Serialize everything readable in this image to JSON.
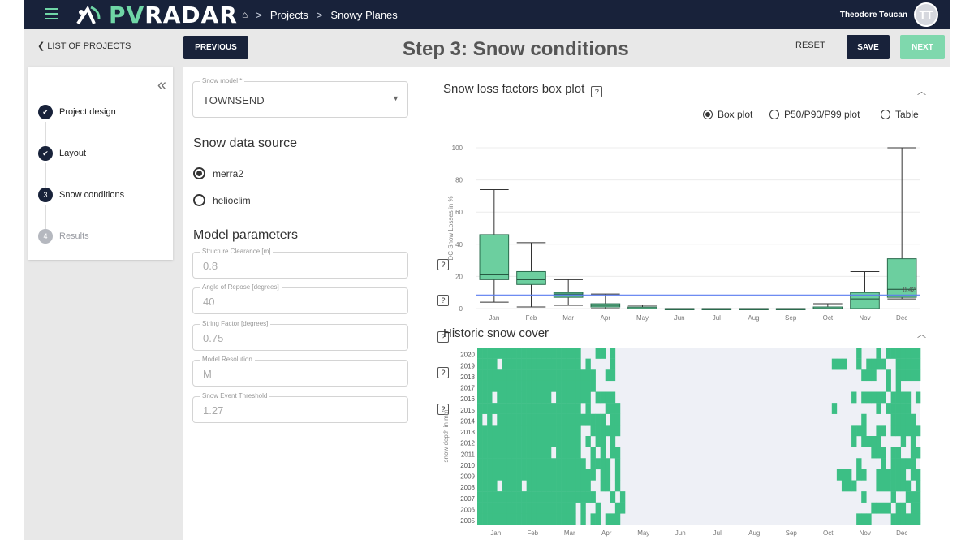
{
  "app": {
    "brand_left": "\\",
    "brand_main": "PV",
    "brand_tail": "RADAR"
  },
  "breadcrumb": {
    "home": "⌂",
    "sep": ">",
    "projects": "Projects",
    "project": "Snowy Planes"
  },
  "user": {
    "name": "Theodore Toucan",
    "initials": "TT"
  },
  "actions": {
    "back": "LIST OF PROJECTS",
    "previous": "PREVIOUS",
    "title": "Step 3: Snow conditions",
    "reset": "RESET",
    "save": "SAVE",
    "next": "NEXT"
  },
  "stepper": {
    "steps": [
      {
        "label": "Project design",
        "state": "done"
      },
      {
        "label": "Layout",
        "state": "done"
      },
      {
        "label": "Snow conditions",
        "state": "active",
        "num": "3"
      },
      {
        "label": "Results",
        "state": "pending",
        "num": "4"
      }
    ]
  },
  "form": {
    "snow_model": {
      "label": "Snow model *",
      "value": "TOWNSEND"
    },
    "source_title": "Snow data source",
    "sources": [
      {
        "label": "merra2",
        "selected": true
      },
      {
        "label": "helioclim",
        "selected": false
      }
    ],
    "params_title": "Model parameters",
    "params": [
      {
        "label": "Structure Clearance [m]",
        "value": "0.8"
      },
      {
        "label": "Angle of Repose [degrees]",
        "value": "40"
      },
      {
        "label": "String Factor [degrees]",
        "value": "0.75"
      },
      {
        "label": "Model Resolution",
        "value": "M"
      },
      {
        "label": "Snow Event Threshold",
        "value": "1.27"
      }
    ],
    "help": "?"
  },
  "box_chart": {
    "title": "Snow loss factors box plot",
    "help": "?",
    "views": [
      {
        "label": "Box plot",
        "selected": true
      },
      {
        "label": "P50/P90/P99 plot",
        "selected": false
      },
      {
        "label": "Table",
        "selected": false
      }
    ]
  },
  "heat_chart": {
    "title": "Historic snow cover"
  },
  "colors": {
    "navy": "#18223a",
    "green": "#3cbf85",
    "box_fill": "#6ccf9f",
    "mean_line": "#5a7cf0"
  },
  "chart_data": [
    {
      "type": "box",
      "ylabel": "DC Snow Losses in %",
      "ylim": [
        0,
        100
      ],
      "yticks": [
        0,
        20,
        40,
        60,
        80,
        100
      ],
      "categories": [
        "Jan",
        "Feb",
        "Mar",
        "Apr",
        "May",
        "Jun",
        "Jul",
        "Aug",
        "Sep",
        "Oct",
        "Nov",
        "Dec"
      ],
      "boxes": [
        {
          "min": 4,
          "q1": 18,
          "median": 21,
          "q3": 46,
          "max": 74
        },
        {
          "min": 1,
          "q1": 15,
          "median": 18,
          "q3": 23,
          "max": 41
        },
        {
          "min": 2,
          "q1": 7,
          "median": 9,
          "q3": 10,
          "max": 18
        },
        {
          "min": 0,
          "q1": 1,
          "median": 2,
          "q3": 3,
          "max": 9
        },
        {
          "min": 0,
          "q1": 0,
          "median": 1,
          "q3": 1,
          "max": 2
        },
        {
          "min": 0,
          "q1": 0,
          "median": 0,
          "q3": 0,
          "max": 0
        },
        {
          "min": 0,
          "q1": 0,
          "median": 0,
          "q3": 0,
          "max": 0
        },
        {
          "min": 0,
          "q1": 0,
          "median": 0,
          "q3": 0,
          "max": 0
        },
        {
          "min": 0,
          "q1": 0,
          "median": 0,
          "q3": 0,
          "max": 0
        },
        {
          "min": 0,
          "q1": 0,
          "median": 0,
          "q3": 1,
          "max": 3
        },
        {
          "min": 0,
          "q1": 0,
          "median": 6,
          "q3": 10,
          "max": 23
        },
        {
          "min": 6,
          "q1": 7,
          "median": 12,
          "q3": 31,
          "max": 100
        }
      ],
      "mean_line": 8.42,
      "mean_label": "8.42"
    },
    {
      "type": "heatmap",
      "ylabel": "snow depth in mm",
      "years": [
        "2020",
        "2019",
        "2018",
        "2017",
        "2016",
        "2015",
        "2014",
        "2013",
        "2012",
        "2011",
        "2010",
        "2009",
        "2008",
        "2007",
        "2006",
        "2005"
      ],
      "months": [
        "Jan",
        "Feb",
        "Mar",
        "Apr",
        "May",
        "Jun",
        "Jul",
        "Aug",
        "Sep",
        "Oct",
        "Nov",
        "Dec"
      ],
      "spring_end": [
        3.3,
        3.35,
        3.2,
        3.3,
        3.15,
        3.25,
        3.4,
        3.3,
        3.2,
        3.3,
        3.25,
        3.35,
        3.3,
        3.4,
        3.45,
        3.35
      ],
      "autumn_start": [
        10.3,
        9.9,
        10.5,
        10.2,
        10.3,
        9.9,
        10.4,
        10.1,
        10.4,
        10.5,
        10.4,
        9.95,
        10.1,
        10.2,
        10.4,
        10.5
      ],
      "speckle_seed": 7
    }
  ]
}
